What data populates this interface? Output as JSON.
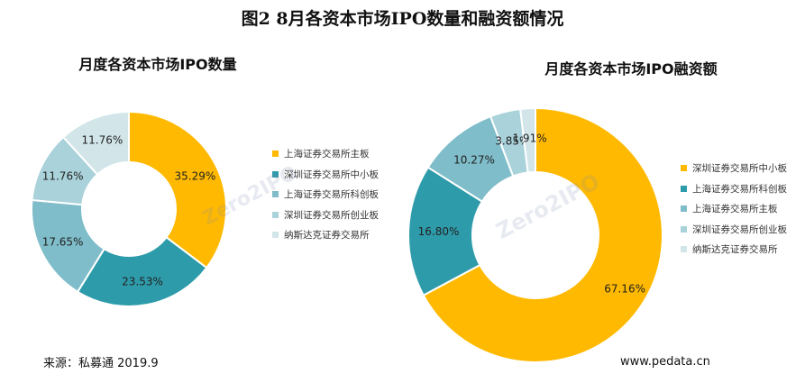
{
  "title": "图2 8月各资本市场IPO数量和融资额情况",
  "source": "来源：私募通 2019.9",
  "website": "www.pedata.cn",
  "chart_data": [
    {
      "type": "pie",
      "title": "月度各资本市场IPO数量",
      "labels": [
        "上海证券交易所主板",
        "深圳证券交易所中小板",
        "上海证券交易所科创板",
        "深圳证券交易所创业板",
        "纳斯达克证券交易所"
      ],
      "values": [
        35.29,
        23.53,
        17.65,
        11.76,
        11.76
      ],
      "value_labels": [
        "35.29%",
        "23.53%",
        "17.65%",
        "11.76%",
        "11.76%"
      ],
      "colors": [
        "#FFB900",
        "#2E9BAA",
        "#7EBDC9",
        "#A9D2DA",
        "#D2E6EA"
      ],
      "legend": "right"
    },
    {
      "type": "pie",
      "title": "月度各资本市场IPO融资额",
      "labels": [
        "深圳证券交易所中小板",
        "上海证券交易所科创板",
        "上海证券交易所主板",
        "深圳证券交易所创业板",
        "纳斯达克证券交易所"
      ],
      "values": [
        67.16,
        16.8,
        10.27,
        3.85,
        1.91
      ],
      "value_labels": [
        "67.16%",
        "16.80%",
        "10.27%",
        "3.85%",
        "1.91%"
      ],
      "colors": [
        "#FFB900",
        "#2E9BAA",
        "#7EBDC9",
        "#A9D2DA",
        "#D2E6EA"
      ],
      "legend": "right"
    }
  ]
}
